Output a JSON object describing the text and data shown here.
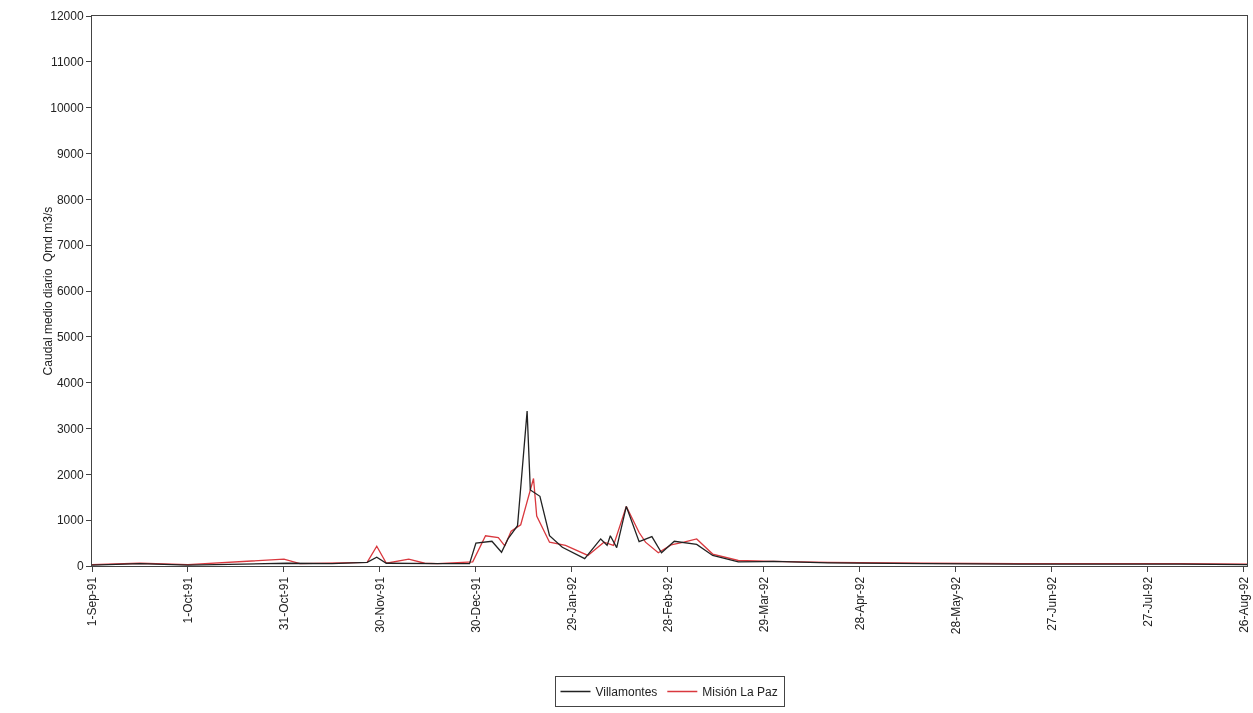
{
  "chart_data": {
    "type": "line",
    "ylabel": "Caudal medio diario  Qmd m3/s",
    "xlim": [
      "1991-09-01",
      "1992-08-27"
    ],
    "xticks": [
      {
        "value": "1991-09-01",
        "label": "1-Sep-91"
      },
      {
        "value": "1991-10-01",
        "label": "1-Oct-91"
      },
      {
        "value": "1991-10-31",
        "label": "31-Oct-91"
      },
      {
        "value": "1991-11-30",
        "label": "30-Nov-91"
      },
      {
        "value": "1991-12-30",
        "label": "30-Dec-91"
      },
      {
        "value": "1992-01-29",
        "label": "29-Jan-92"
      },
      {
        "value": "1992-02-28",
        "label": "28-Feb-92"
      },
      {
        "value": "1992-03-29",
        "label": "29-Mar-92"
      },
      {
        "value": "1992-04-28",
        "label": "28-Apr-92"
      },
      {
        "value": "1992-05-28",
        "label": "28-May-92"
      },
      {
        "value": "1992-06-27",
        "label": "27-Jun-92"
      },
      {
        "value": "1992-07-27",
        "label": "27-Jul-92"
      },
      {
        "value": "1992-08-26",
        "label": "26-Aug-92"
      }
    ],
    "ylim": [
      0,
      12000
    ],
    "yticks": [
      0,
      1000,
      2000,
      3000,
      4000,
      5000,
      6000,
      7000,
      8000,
      9000,
      10000,
      11000,
      12000
    ],
    "grid": false,
    "legend": "bottom",
    "marker": "none",
    "line_style": "solid",
    "series": [
      {
        "name": "Villamontes",
        "color": "#222222",
        "x": [
          "1991-09-01",
          "1991-09-16",
          "1991-10-01",
          "1991-11-01",
          "1991-11-15",
          "1991-11-26",
          "1991-11-29",
          "1991-12-02",
          "1991-12-18",
          "1991-12-28",
          "1991-12-30",
          "1992-01-04",
          "1992-01-07",
          "1992-01-09",
          "1992-01-12",
          "1992-01-15",
          "1992-01-16",
          "1992-01-19",
          "1992-01-22",
          "1992-01-26",
          "1992-02-02",
          "1992-02-07",
          "1992-02-09",
          "1992-02-10",
          "1992-02-12",
          "1992-02-15",
          "1992-02-19",
          "1992-02-23",
          "1992-02-26",
          "1992-03-01",
          "1992-03-08",
          "1992-03-13",
          "1992-03-21",
          "1992-04-01",
          "1992-04-18",
          "1992-05-18",
          "1992-06-27",
          "1992-08-06",
          "1992-08-27"
        ],
        "values": [
          20,
          50,
          20,
          60,
          50,
          80,
          190,
          60,
          50,
          50,
          500,
          540,
          300,
          590,
          880,
          3380,
          1660,
          1520,
          660,
          410,
          160,
          590,
          450,
          660,
          400,
          1300,
          530,
          640,
          290,
          540,
          470,
          230,
          90,
          100,
          70,
          50,
          40,
          40,
          30
        ]
      },
      {
        "name": "Misión La Paz",
        "color": "#d9383e",
        "x": [
          "1991-09-01",
          "1991-09-16",
          "1991-10-01",
          "1991-10-31",
          "1991-11-05",
          "1991-11-26",
          "1991-11-29",
          "1991-12-02",
          "1991-12-09",
          "1991-12-14",
          "1991-12-18",
          "1991-12-29",
          "1992-01-02",
          "1992-01-06",
          "1992-01-08",
          "1992-01-10",
          "1992-01-13",
          "1992-01-17",
          "1992-01-18",
          "1992-01-22",
          "1992-01-27",
          "1992-02-03",
          "1992-02-08",
          "1992-02-11",
          "1992-02-15",
          "1992-02-19",
          "1992-02-21",
          "1992-02-25",
          "1992-02-29",
          "1992-03-04",
          "1992-03-08",
          "1992-03-13",
          "1992-03-21",
          "1992-04-01",
          "1992-04-18",
          "1992-05-18",
          "1992-06-27",
          "1992-08-06",
          "1992-08-27"
        ],
        "values": [
          30,
          60,
          30,
          150,
          50,
          80,
          430,
          60,
          150,
          60,
          50,
          90,
          660,
          620,
          440,
          760,
          900,
          1910,
          1090,
          520,
          450,
          230,
          520,
          450,
          1300,
          730,
          520,
          290,
          460,
          520,
          590,
          260,
          120,
          100,
          80,
          60,
          50,
          50,
          40
        ]
      }
    ]
  }
}
